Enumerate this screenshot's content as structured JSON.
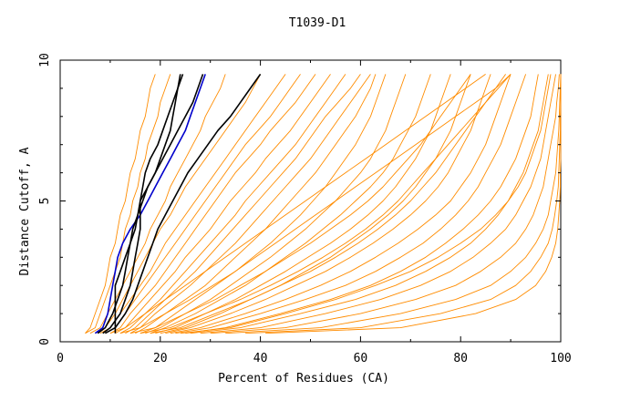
{
  "chart_data": {
    "type": "line",
    "title": "T1039-D1",
    "xlabel": "Percent of Residues (CA)",
    "ylabel": "Distance Cutoff, A",
    "xlim": [
      0,
      100
    ],
    "ylim": [
      0,
      10
    ],
    "x_ticks": [
      "0",
      "20",
      "40",
      "60",
      "80",
      "100"
    ],
    "y_ticks": [
      "0",
      "5",
      "10"
    ],
    "grid": false,
    "colors": {
      "models": "#ff8c00",
      "highlight_black": "#000000",
      "highlight_blue": "#0000cc"
    },
    "y_levels": [
      0.3,
      0.5,
      1,
      1.5,
      2,
      2.5,
      3,
      3.5,
      4,
      4.5,
      5,
      5.5,
      6,
      6.5,
      7,
      7.5,
      8,
      8.5,
      9,
      9.5
    ],
    "series": [
      {
        "color": "#0000cc",
        "x": [
          7,
          8.5,
          9.5,
          10,
          10.5,
          11,
          11.5,
          12.5,
          14,
          16,
          17.5,
          19,
          20.5,
          22,
          23.5,
          25,
          26,
          27,
          28,
          29
        ]
      },
      {
        "color": "#000000",
        "x": [
          7.5,
          9,
          10.5,
          11.5,
          12.5,
          13,
          13.5,
          14,
          14.5,
          15.5,
          16.5,
          17.5,
          19,
          20.5,
          22,
          23.5,
          25,
          26.5,
          27.5,
          28.5
        ]
      },
      {
        "color": "#000000",
        "x": [
          8.5,
          10,
          12,
          13,
          14,
          14.5,
          15,
          15.5,
          16,
          16,
          16,
          16.5,
          17,
          18,
          19.5,
          20.5,
          21.5,
          22.5,
          23.5,
          24.5
        ]
      },
      {
        "color": "#000000",
        "x": [
          11,
          11,
          11,
          11,
          11,
          12,
          13,
          14,
          15,
          15.5,
          16,
          17.5,
          19,
          20,
          21,
          22,
          22.5,
          23,
          23.5,
          24
        ]
      },
      {
        "color": "#000000",
        "x": [
          9,
          11,
          13,
          14.5,
          15.5,
          16.5,
          17.5,
          18.5,
          19.5,
          21,
          22.5,
          24,
          25.5,
          27.5,
          29.5,
          31.5,
          34,
          36,
          38,
          40
        ]
      },
      {
        "color": "#ff8c00",
        "x": [
          5,
          7,
          8,
          9,
          10,
          11,
          12,
          12.5,
          13,
          14,
          14.5,
          15.5,
          16,
          17,
          17.5,
          18.5,
          19.5,
          20,
          21,
          22
        ]
      },
      {
        "color": "#ff8c00",
        "x": [
          5,
          6,
          7,
          8,
          9,
          9.5,
          10,
          11,
          11.5,
          12,
          13,
          13.5,
          14,
          15,
          15.5,
          16,
          17,
          17.5,
          18,
          19
        ]
      },
      {
        "color": "#ff8c00",
        "x": [
          6,
          8,
          9.5,
          11,
          12.5,
          14,
          15.5,
          17,
          18,
          19.5,
          21,
          22,
          23.5,
          25,
          26.5,
          28,
          29,
          30.5,
          32,
          33
        ]
      },
      {
        "color": "#ff8c00",
        "x": [
          7,
          9,
          11,
          12.5,
          14,
          15.5,
          17,
          18.5,
          20,
          22,
          23.5,
          25,
          27,
          29,
          31,
          33,
          35,
          37,
          38.5,
          40
        ]
      },
      {
        "color": "#ff8c00",
        "x": [
          8,
          10,
          12,
          14,
          16,
          18,
          19.5,
          21,
          23,
          25,
          27,
          29,
          31,
          33,
          35,
          37,
          39,
          41,
          43,
          45
        ]
      },
      {
        "color": "#ff8c00",
        "x": [
          9,
          11,
          13,
          15,
          17,
          19,
          21,
          23,
          25,
          27,
          29,
          31,
          33,
          35,
          37,
          39.5,
          42,
          44,
          46,
          48
        ]
      },
      {
        "color": "#ff8c00",
        "x": [
          10,
          12,
          14,
          16.5,
          19,
          21,
          23,
          25,
          27,
          29,
          31,
          33,
          35,
          37.5,
          40,
          42,
          44.5,
          47,
          49,
          51
        ]
      },
      {
        "color": "#ff8c00",
        "x": [
          11,
          13,
          15.5,
          18,
          20.5,
          23,
          25,
          27.5,
          30,
          32,
          34,
          36.5,
          39,
          41,
          43.5,
          46,
          48,
          50,
          52,
          54
        ]
      },
      {
        "color": "#ff8c00",
        "x": [
          12,
          14,
          17,
          20,
          22.5,
          25,
          27.5,
          30,
          32.5,
          35,
          37,
          39.5,
          42,
          44.5,
          47,
          49,
          51,
          53,
          55,
          57
        ]
      },
      {
        "color": "#ff8c00",
        "x": [
          13,
          15,
          18,
          21,
          24,
          27,
          29.5,
          32,
          34.5,
          37,
          39.5,
          42,
          44.5,
          47,
          49,
          51,
          53,
          55.5,
          58,
          60
        ]
      },
      {
        "color": "#ff8c00",
        "x": [
          14,
          16,
          19,
          22.5,
          26,
          29,
          32,
          35,
          37.5,
          40,
          42.5,
          45,
          47.5,
          50,
          52,
          54,
          56,
          58,
          60,
          62
        ]
      },
      {
        "color": "#ff8c00",
        "x": [
          15,
          17,
          21,
          25,
          29,
          32,
          35,
          38,
          41,
          43.5,
          46,
          48.5,
          51,
          53,
          55,
          57,
          59,
          60.5,
          62,
          63
        ]
      },
      {
        "color": "#ff8c00",
        "x": [
          16,
          19,
          23,
          27,
          31,
          35,
          38.5,
          42,
          45,
          48,
          50.5,
          53,
          55,
          57,
          59,
          60.5,
          62,
          63,
          64,
          65
        ]
      },
      {
        "color": "#ff8c00",
        "x": [
          17,
          20,
          25,
          30,
          34,
          38,
          42,
          45.5,
          49,
          52,
          55,
          57.5,
          60,
          62,
          63.5,
          65,
          66,
          67,
          68,
          69
        ]
      },
      {
        "color": "#ff8c00",
        "x": [
          18,
          21,
          27,
          32,
          37,
          41,
          45,
          49,
          52.5,
          56,
          59,
          62,
          64.5,
          66.5,
          68,
          69.5,
          71,
          72,
          73,
          74
        ]
      },
      {
        "color": "#ff8c00",
        "x": [
          19,
          23,
          29,
          35,
          40,
          45,
          49.5,
          54,
          58,
          61.5,
          64.5,
          67,
          69,
          71,
          72.5,
          74,
          75,
          76,
          77,
          78
        ]
      },
      {
        "color": "#ff8c00",
        "x": [
          20,
          25,
          32,
          38,
          44,
          49,
          54,
          58,
          62,
          65.5,
          68.5,
          71,
          73,
          75,
          76.5,
          78,
          79,
          80,
          81,
          82
        ]
      },
      {
        "color": "#ff8c00",
        "x": [
          21,
          26,
          34,
          41,
          47,
          53,
          58,
          62.5,
          66.5,
          70,
          73,
          75.5,
          77.5,
          79,
          80.5,
          82,
          83,
          84,
          85,
          86
        ]
      },
      {
        "color": "#ff8c00",
        "x": [
          22,
          28,
          37,
          45,
          52,
          58,
          63,
          67.5,
          71.5,
          75,
          78,
          80,
          82,
          83.5,
          85,
          86,
          87,
          88,
          89,
          90
        ]
      },
      {
        "color": "#ff8c00",
        "x": [
          23,
          30,
          40,
          49,
          57,
          63,
          68,
          72.5,
          76,
          79,
          81.5,
          83.5,
          85,
          86.5,
          88,
          89,
          90,
          91,
          92,
          93
        ]
      },
      {
        "color": "#ff8c00",
        "x": [
          25,
          33,
          44,
          54,
          62,
          68,
          73,
          77,
          80.5,
          83.5,
          86,
          88,
          89.5,
          91,
          92,
          93,
          94,
          94.5,
          95,
          95.5
        ]
      },
      {
        "color": "#ff8c00",
        "x": [
          26,
          36,
          48,
          59,
          67,
          73,
          78,
          82,
          85,
          87.5,
          89.5,
          91,
          92.5,
          93.5,
          94.5,
          95.5,
          96,
          96.5,
          97,
          97.5
        ]
      },
      {
        "color": "#ff8c00",
        "x": [
          28,
          40,
          53,
          64,
          72,
          78,
          82.5,
          86,
          89,
          91,
          92.5,
          94,
          95,
          96,
          96.5,
          97,
          97.5,
          98,
          98.5,
          99
        ]
      },
      {
        "color": "#ff8c00",
        "x": [
          30,
          45,
          60,
          71,
          79,
          84,
          88,
          91,
          93,
          94.5,
          95.5,
          96.5,
          97,
          97.5,
          98,
          98.5,
          99,
          99.2,
          99.5,
          99.7
        ]
      },
      {
        "color": "#ff8c00",
        "x": [
          33,
          52,
          68,
          79,
          86,
          90,
          93,
          95,
          96.5,
          97.5,
          98,
          98.5,
          99,
          99.2,
          99.4,
          99.6,
          99.7,
          99.8,
          99.9,
          100
        ]
      },
      {
        "color": "#ff8c00",
        "x": [
          37,
          60,
          76,
          86,
          91,
          94,
          96,
          97.5,
          98.3,
          98.8,
          99.2,
          99.5,
          99.6,
          99.7,
          99.8,
          99.9,
          99.9,
          100,
          100,
          100
        ]
      },
      {
        "color": "#ff8c00",
        "x": [
          41,
          68,
          83,
          91,
          95,
          97,
          98.2,
          99,
          99.4,
          99.6,
          99.8,
          99.9,
          99.9,
          100,
          100,
          100,
          100,
          100,
          100,
          100
        ]
      },
      {
        "color": "#ff8c00",
        "x": [
          14,
          19,
          25,
          31,
          36,
          41,
          45.5,
          50,
          54,
          58,
          61.5,
          64.5,
          67,
          69.5,
          72,
          74,
          76,
          78,
          80,
          82
        ]
      },
      {
        "color": "#ff8c00",
        "x": [
          12,
          16,
          21,
          26,
          30.5,
          35,
          39,
          43,
          47,
          51,
          55,
          59,
          63,
          67,
          71,
          75,
          79,
          83,
          87,
          90
        ]
      },
      {
        "color": "#ff8c00",
        "x": [
          10,
          13,
          17,
          21,
          25,
          29,
          33,
          37,
          41,
          45,
          49,
          53,
          57,
          61,
          65,
          69,
          73,
          77,
          81,
          85
        ]
      },
      {
        "color": "#ff8c00",
        "x": [
          18,
          24,
          31,
          38,
          44,
          50,
          55,
          59.5,
          63.5,
          67,
          70,
          72.5,
          75,
          77,
          79,
          81,
          83,
          85,
          87,
          89
        ]
      },
      {
        "color": "#ff8c00",
        "x": [
          24,
          34,
          45,
          55,
          63,
          70,
          75.5,
          80,
          84,
          87,
          89.5,
          91.5,
          93,
          94,
          95,
          96,
          96.5,
          97,
          97.5,
          98
        ]
      },
      {
        "color": "#ff8c00",
        "x": [
          16,
          22,
          29,
          36,
          42,
          47.5,
          52.5,
          57,
          61,
          64.5,
          67.5,
          70,
          72.5,
          75,
          77.5,
          80,
          82.5,
          85,
          87.5,
          90
        ]
      }
    ]
  }
}
